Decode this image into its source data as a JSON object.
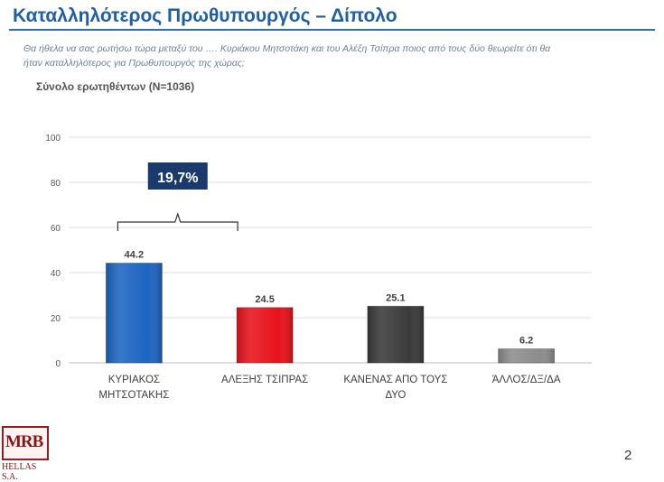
{
  "header": {
    "title": "Καταλληλότερος Πρωθυπουργός – Δίπολο",
    "question_line1": "Θα ήθελα να σας ρωτήσω τώρα μεταξύ του …. Κυριάκου Μητσοτάκη και του Αλέξη Τσίπρα ποιος από τους δύο θεωρείτε ότι θα",
    "question_line2": "ήταν καταλληλότερος για Πρωθυπουργός της χώρας;",
    "sample": "Σύνολο ερωτηθέντων (N=1036)"
  },
  "chart_data": {
    "type": "bar",
    "categories": [
      [
        "ΚΥΡΙΑΚΟΣ",
        "ΜΗΤΣΟΤΑΚΗΣ"
      ],
      [
        "ΑΛΕΞΗΣ ΤΣΙΠΡΑΣ"
      ],
      [
        "ΚΑΝΕΝΑΣ ΑΠΟ ΤΟΥΣ",
        "ΔΥΟ"
      ],
      [
        "ΆΛΛΟΣ/ΔΞ/ΔΑ"
      ]
    ],
    "values": [
      44.2,
      24.5,
      25.1,
      6.2
    ],
    "value_labels": [
      "44.2",
      "24.5",
      "25.1",
      "6.2"
    ],
    "colors": [
      "#1d64c2",
      "#e8121b",
      "#3a3a3a",
      "#8c8c8c"
    ],
    "ylim": [
      0,
      100
    ],
    "yticks": [
      0,
      20,
      40,
      60,
      80,
      100
    ],
    "grid": true,
    "title": "",
    "xlabel": "",
    "ylabel": "",
    "annotation": {
      "text": "19,7%",
      "between": [
        0,
        1
      ],
      "color": "#1a3a6e"
    }
  },
  "logo": {
    "main": "MRB",
    "sub": "HELLAS S.A."
  },
  "page_number": "2"
}
